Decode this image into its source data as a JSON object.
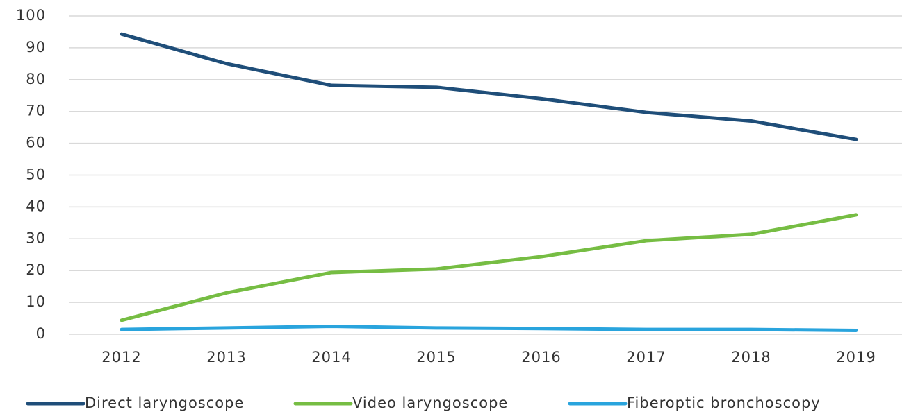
{
  "chart_data": {
    "type": "line",
    "categories": [
      "2012",
      "2013",
      "2014",
      "2015",
      "2016",
      "2017",
      "2018",
      "2019"
    ],
    "series": [
      {
        "name": "Direct laryngoscope",
        "color": "#1f4e79",
        "values": [
          94.3,
          85,
          78.2,
          77.6,
          74,
          69.7,
          67,
          61.2
        ]
      },
      {
        "name": "Video laryngoscope",
        "color": "#76bd43",
        "values": [
          4.4,
          13,
          19.4,
          20.5,
          24.4,
          29.4,
          31.4,
          37.5
        ]
      },
      {
        "name": "Fiberoptic bronchoscopy",
        "color": "#29a4dd",
        "values": [
          1.5,
          2,
          2.5,
          2,
          1.8,
          1.5,
          1.5,
          1.2
        ]
      }
    ],
    "ylim": [
      0,
      100
    ],
    "yticks": [
      0,
      10,
      20,
      30,
      40,
      50,
      60,
      70,
      80,
      90,
      100
    ],
    "grid": true,
    "legend": "bottom"
  }
}
